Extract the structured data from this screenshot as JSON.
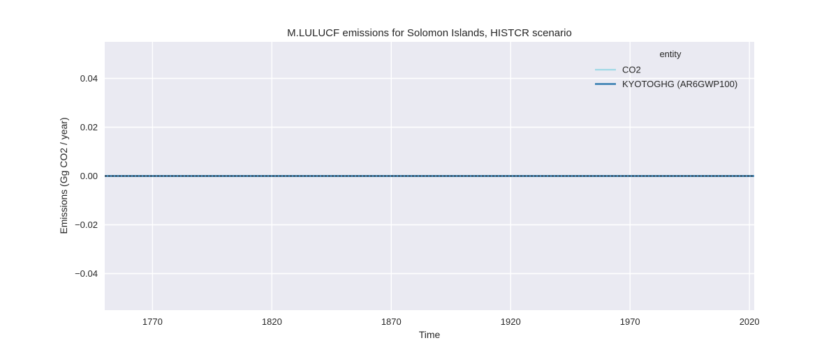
{
  "chart_data": {
    "type": "line",
    "title": "M.LULUCF emissions for Solomon Islands, HISTCR scenario",
    "xlabel": "Time",
    "ylabel": "Emissions (Gg CO2 / year)",
    "xlim": [
      1750,
      2022
    ],
    "ylim": [
      -0.055,
      0.055
    ],
    "xticks": [
      1770,
      1820,
      1870,
      1920,
      1970,
      2020
    ],
    "xtick_labels": [
      "1770",
      "1820",
      "1870",
      "1920",
      "1970",
      "2020"
    ],
    "yticks": [
      0.04,
      0.02,
      0.0,
      -0.02,
      -0.04
    ],
    "ytick_labels": [
      "0.04",
      "0.02",
      "0.00",
      "−0.02",
      "−0.04"
    ],
    "grid": true,
    "legend": {
      "title": "entity",
      "placement": "top-right"
    },
    "series": [
      {
        "name": "CO2",
        "color": "#9fd8e6",
        "x": [
          1750,
          2022
        ],
        "y": [
          0,
          0
        ]
      },
      {
        "name": "KYOTOGHG (AR6GWP100)",
        "color": "#1f6fa8",
        "x": [
          1750,
          2022
        ],
        "y": [
          0,
          0
        ]
      }
    ],
    "colors": {
      "plot_background": "#eaeaf2",
      "grid": "#ffffff",
      "zero_line": "#000000"
    }
  }
}
